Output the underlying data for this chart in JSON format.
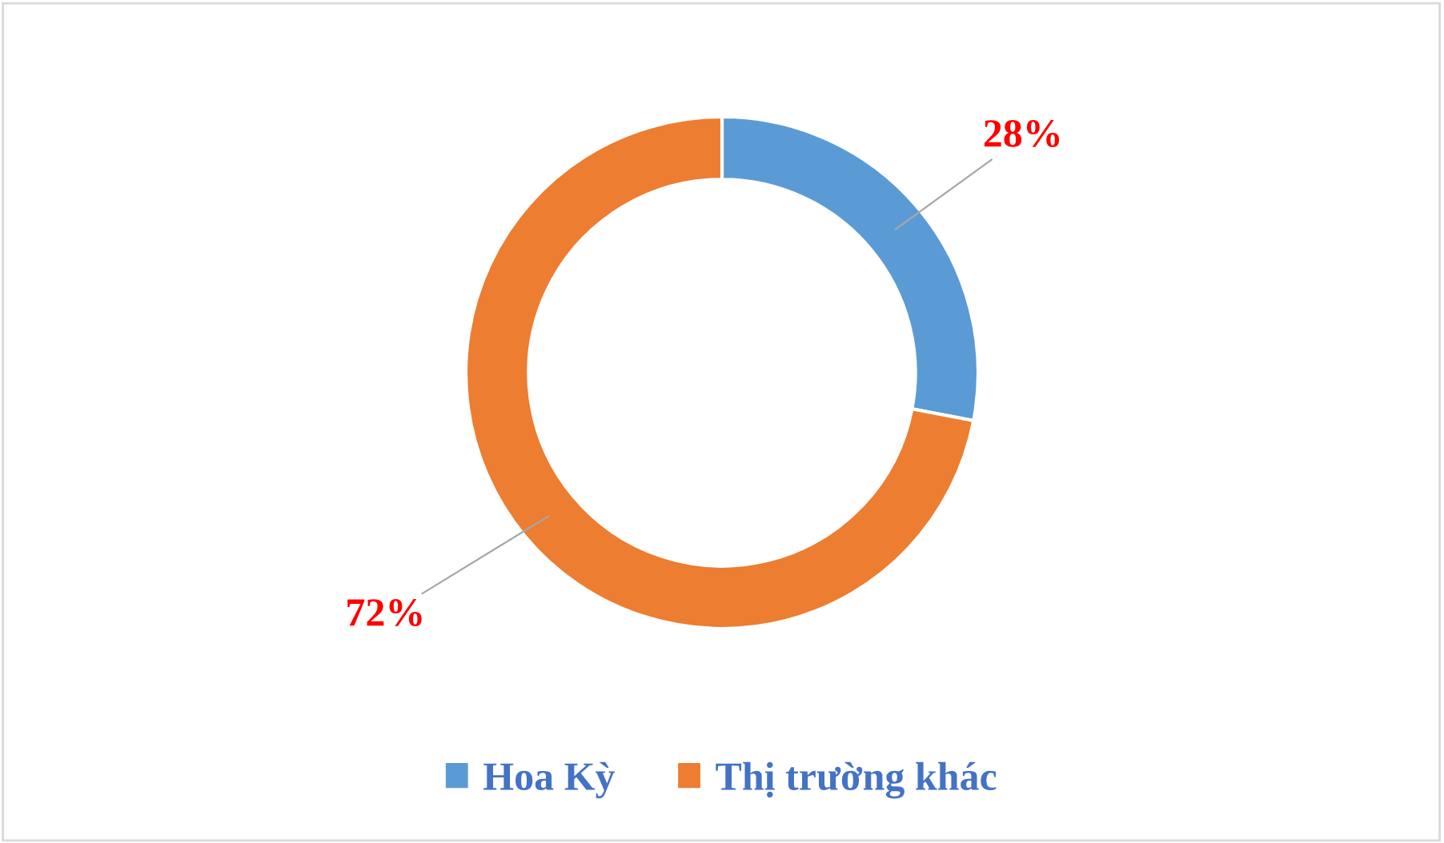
{
  "chart_data": {
    "type": "donut",
    "categories": [
      "Hoa Kỳ",
      "Thị trường khác"
    ],
    "values": [
      28,
      72
    ],
    "colors": [
      "#5b9bd5",
      "#ed7d31"
    ],
    "data_labels": true,
    "value_labels": [
      "28%",
      "72%"
    ],
    "legend": "bottom"
  }
}
